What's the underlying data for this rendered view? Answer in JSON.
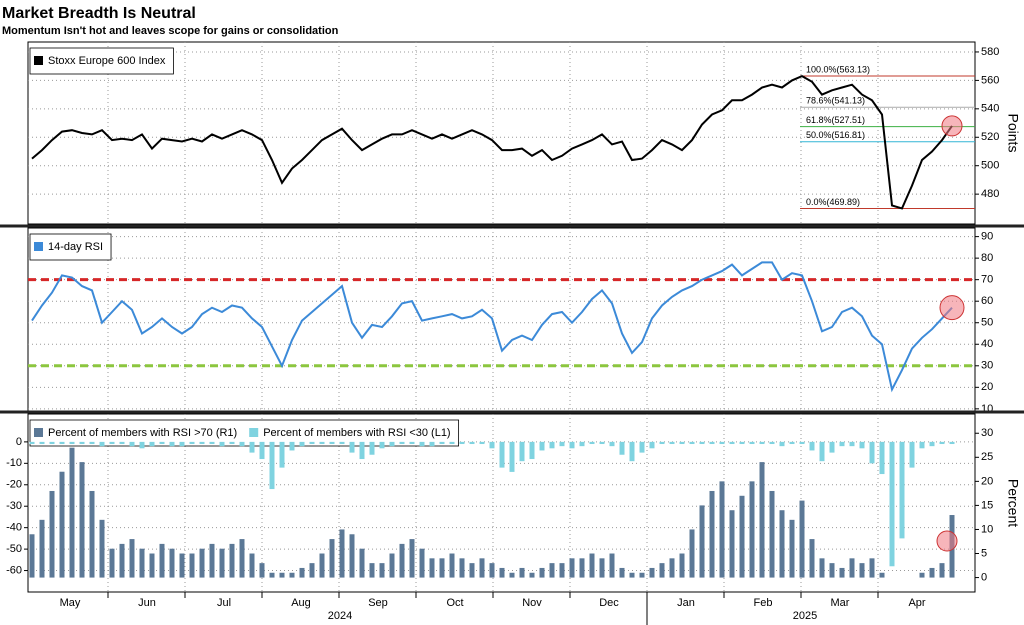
{
  "chart_data": [
    {
      "type": "line",
      "title": "Market Breadth Is Neutral",
      "subtitle": "Momentum Isn't hot and leaves scope for gains or consolidation",
      "series": [
        {
          "name": "Stoxx Europe 600 Index",
          "color": "#000000",
          "values": [
            505,
            511,
            518,
            524,
            525,
            523,
            522,
            525,
            518,
            519,
            518,
            522,
            512,
            519,
            518,
            517,
            519,
            517,
            522,
            519,
            522,
            525,
            522,
            518,
            504,
            488,
            498,
            504,
            511,
            518,
            522,
            526,
            518,
            511,
            515,
            519,
            522,
            522,
            525,
            522,
            519,
            522,
            519,
            522,
            525,
            522,
            518,
            511,
            511,
            512,
            507,
            511,
            504,
            507,
            512,
            515,
            518,
            522,
            515,
            517,
            504,
            505,
            511,
            518,
            515,
            511,
            518,
            529,
            536,
            539,
            546,
            546,
            550,
            555,
            557,
            555,
            560,
            563,
            559,
            550,
            553,
            555,
            557,
            550,
            546,
            536,
            472,
            470,
            486,
            504,
            510,
            518,
            528
          ]
        }
      ],
      "ylim": [
        459,
        587
      ],
      "yticks": [
        480,
        500,
        520,
        540,
        560,
        580
      ],
      "y_label": "Points",
      "grid": true,
      "levels": [
        {
          "label": "100.0%(563.13)",
          "value": 563.13,
          "color": "#c0392b"
        },
        {
          "label": "78.6%(541.13)",
          "value": 541.13,
          "color": "#aaaaaa"
        },
        {
          "label": "61.8%(527.51)",
          "value": 527.51,
          "color": "#3cb043"
        },
        {
          "label": "50.0%(516.81)",
          "value": 516.81,
          "color": "#33b5d6"
        },
        {
          "label": "0.0%(469.89)",
          "value": 469.89,
          "color": "#c0392b"
        }
      ]
    },
    {
      "type": "line",
      "series": [
        {
          "name": "14-day RSI",
          "color": "#3c8ad8",
          "values": [
            51,
            58,
            64,
            72,
            71,
            67,
            65,
            50,
            55,
            60,
            56,
            45,
            48,
            52,
            48,
            45,
            48,
            54,
            57,
            55,
            58,
            57,
            52,
            48,
            39,
            30,
            42,
            51,
            55,
            59,
            63,
            67,
            50,
            43,
            49,
            48,
            53,
            59,
            60,
            51,
            52,
            53,
            54,
            52,
            53,
            56,
            52,
            37,
            42,
            44,
            42,
            49,
            54,
            55,
            50,
            55,
            61,
            65,
            59,
            45,
            36,
            41,
            52,
            58,
            62,
            65,
            67,
            70,
            72,
            74,
            77,
            72,
            75,
            78,
            78,
            70,
            73,
            72,
            60,
            46,
            48,
            55,
            57,
            53,
            44,
            40,
            19,
            28,
            38,
            43,
            47,
            52,
            57
          ]
        }
      ],
      "ylim": [
        9,
        94
      ],
      "yticks": [
        10,
        20,
        30,
        40,
        50,
        60,
        70,
        80,
        90
      ],
      "grid": true,
      "reference_lines": [
        {
          "value": 70,
          "color": "#d62728"
        },
        {
          "value": 30,
          "color": "#8cc63f"
        }
      ]
    },
    {
      "type": "bar",
      "series": [
        {
          "name": "Percent of members with RSI >70 (R1)",
          "color": "#5b7896",
          "axis": "y2",
          "values": [
            9,
            12,
            18,
            22,
            27,
            24,
            18,
            12,
            6,
            7,
            8,
            6,
            5,
            7,
            6,
            5,
            5,
            6,
            7,
            6,
            7,
            8,
            5,
            3,
            1,
            1,
            1,
            2,
            3,
            5,
            8,
            10,
            9,
            6,
            3,
            3,
            5,
            7,
            8,
            6,
            4,
            4,
            5,
            4,
            3,
            4,
            3,
            2,
            1,
            2,
            1,
            2,
            3,
            3,
            4,
            4,
            5,
            4,
            5,
            2,
            1,
            1,
            2,
            3,
            4,
            5,
            10,
            15,
            18,
            20,
            14,
            17,
            20,
            24,
            18,
            14,
            12,
            16,
            8,
            4,
            3,
            2,
            4,
            3,
            4,
            1,
            0,
            0,
            0,
            1,
            2,
            3,
            13
          ]
        },
        {
          "name": "Percent of members with RSI <30 (L1)",
          "color": "#7fd3e0",
          "values": [
            -1,
            -1,
            -1,
            -1,
            -1,
            -1,
            -1,
            -2,
            -1,
            -1,
            -2,
            -3,
            -2,
            -1,
            -2,
            -2,
            -1,
            -1,
            -1,
            -2,
            -1,
            -2,
            -5,
            -8,
            -22,
            -12,
            -4,
            -2,
            -1,
            -1,
            -1,
            -1,
            -5,
            -8,
            -6,
            -3,
            -2,
            -1,
            -1,
            -2,
            -2,
            -1,
            -1,
            -1,
            -1,
            -1,
            -3,
            -12,
            -14,
            -9,
            -8,
            -4,
            -3,
            -2,
            -3,
            -2,
            -1,
            -1,
            -2,
            -6,
            -9,
            -5,
            -3,
            -1,
            -1,
            -1,
            -1,
            -1,
            -1,
            -1,
            -1,
            -1,
            -1,
            -1,
            -1,
            -2,
            -1,
            -1,
            -4,
            -9,
            -5,
            -2,
            -2,
            -3,
            -10,
            -15,
            -58,
            -45,
            -12,
            -3,
            -2,
            -1,
            -1
          ]
        }
      ],
      "ylim": [
        -70,
        13
      ],
      "yticks": [
        0,
        -10,
        -20,
        -30,
        -40,
        -50,
        -60
      ],
      "y2lim": [
        -3,
        34
      ],
      "y2ticks": [
        0,
        5,
        10,
        15,
        20,
        25,
        30
      ],
      "y2_label": "Percent",
      "grid": true,
      "x_labels": [
        "May",
        "Jun",
        "Jul",
        "Aug",
        "Sep",
        "Oct",
        "Nov",
        "Dec",
        "Jan",
        "Feb",
        "Mar",
        "Apr"
      ],
      "years": [
        "2024",
        "2025"
      ]
    }
  ]
}
